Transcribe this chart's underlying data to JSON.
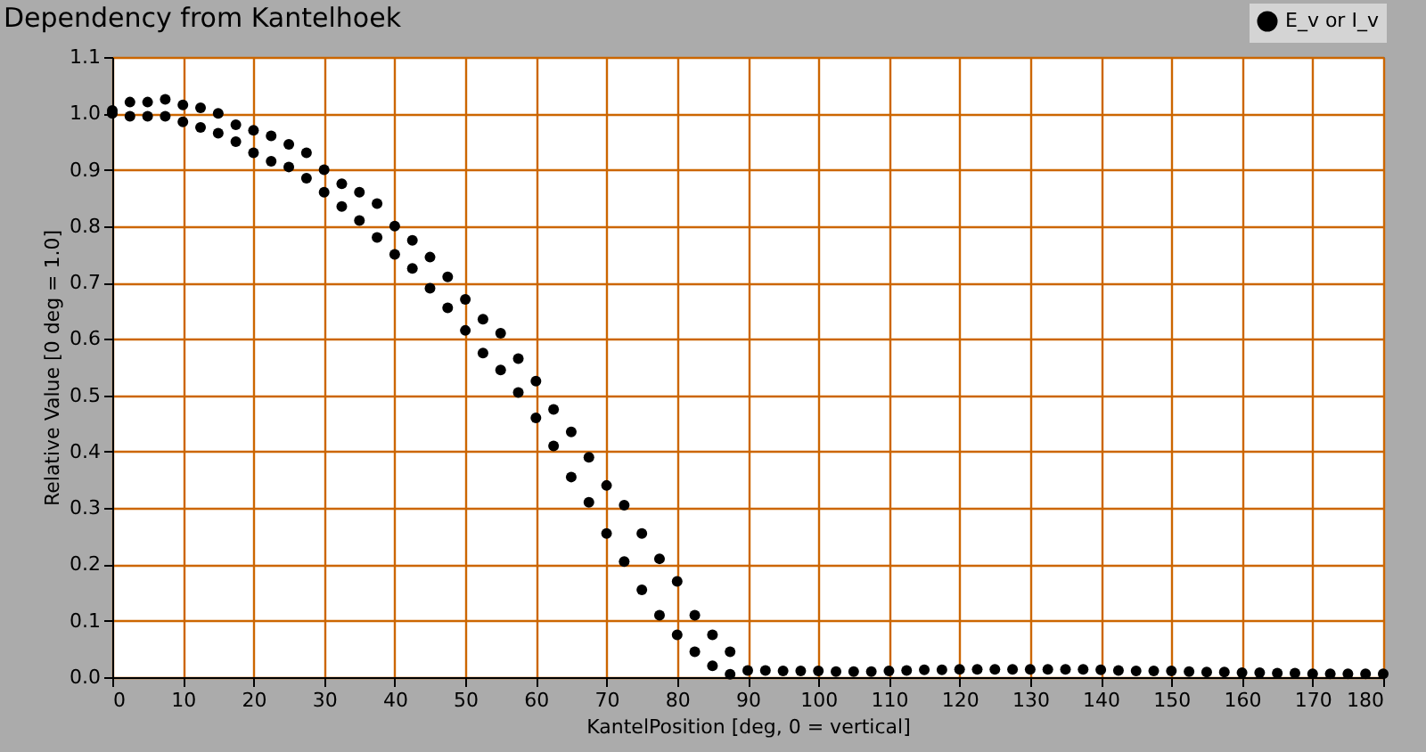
{
  "chart_data": {
    "type": "scatter",
    "title": "Dependency from Kantelhoek",
    "xlabel": "KantelPosition [deg, 0 = vertical]",
    "ylabel": "Relative Value [0 deg = 1.0]",
    "series": [
      {
        "name": "E_v or I_v",
        "color": "#000000",
        "x": [
          0,
          0,
          2.5,
          2.5,
          5,
          5,
          7.5,
          7.5,
          10,
          10,
          12.5,
          12.5,
          15,
          15,
          17.5,
          17.5,
          20,
          20,
          22.5,
          22.5,
          25,
          25,
          27.5,
          27.5,
          30,
          30,
          32.5,
          32.5,
          35,
          35,
          37.5,
          37.5,
          40,
          40,
          42.5,
          42.5,
          45,
          45,
          47.5,
          47.5,
          50,
          50,
          52.5,
          52.5,
          55,
          55,
          57.5,
          57.5,
          60,
          60,
          62.5,
          62.5,
          65,
          65,
          67.5,
          67.5,
          70,
          70,
          72.5,
          72.5,
          75,
          75,
          77.5,
          77.5,
          80,
          80,
          82.5,
          82.5,
          85,
          85,
          87.5,
          87.5,
          90,
          92.5,
          95,
          97.5,
          100,
          102.5,
          105,
          107.5,
          110,
          112.5,
          115,
          117.5,
          120,
          122.5,
          125,
          127.5,
          130,
          132.5,
          135,
          137.5,
          140,
          142.5,
          145,
          147.5,
          150,
          152.5,
          155,
          157.5,
          160,
          162.5,
          165,
          167.5,
          170,
          172.5,
          175,
          177.5,
          180
        ],
        "values": [
          1.0,
          1.005,
          0.995,
          1.02,
          0.995,
          1.02,
          0.995,
          1.025,
          0.985,
          1.015,
          0.975,
          1.01,
          0.965,
          1.0,
          0.95,
          0.98,
          0.93,
          0.97,
          0.915,
          0.96,
          0.905,
          0.945,
          0.885,
          0.93,
          0.86,
          0.9,
          0.835,
          0.875,
          0.81,
          0.86,
          0.78,
          0.84,
          0.75,
          0.8,
          0.725,
          0.775,
          0.69,
          0.745,
          0.655,
          0.71,
          0.615,
          0.67,
          0.575,
          0.635,
          0.545,
          0.61,
          0.505,
          0.565,
          0.46,
          0.525,
          0.41,
          0.475,
          0.355,
          0.435,
          0.31,
          0.39,
          0.255,
          0.34,
          0.205,
          0.305,
          0.155,
          0.255,
          0.11,
          0.21,
          0.075,
          0.17,
          0.045,
          0.11,
          0.02,
          0.075,
          0.005,
          0.045,
          0.012,
          0.012,
          0.011,
          0.011,
          0.011,
          0.01,
          0.01,
          0.01,
          0.011,
          0.012,
          0.013,
          0.013,
          0.014,
          0.014,
          0.014,
          0.014,
          0.014,
          0.014,
          0.014,
          0.014,
          0.013,
          0.012,
          0.011,
          0.011,
          0.011,
          0.01,
          0.009,
          0.009,
          0.008,
          0.008,
          0.007,
          0.007,
          0.006,
          0.006,
          0.006,
          0.006,
          0.006
        ]
      }
    ],
    "xlim": [
      0,
      180
    ],
    "xticks": [
      0,
      10,
      20,
      30,
      40,
      50,
      60,
      70,
      80,
      90,
      100,
      110,
      120,
      130,
      140,
      150,
      160,
      170,
      180
    ],
    "ylim": [
      0,
      1.1
    ],
    "yticks": [
      {
        "value": 0,
        "label": "0.0"
      },
      {
        "value": 0.1,
        "label": "0.1"
      },
      {
        "value": 0.2,
        "label": "0.2"
      },
      {
        "value": 0.3,
        "label": "0.3"
      },
      {
        "value": 0.4,
        "label": "0.4"
      },
      {
        "value": 0.5,
        "label": "0.5"
      },
      {
        "value": 0.6,
        "label": "0.6"
      },
      {
        "value": 0.7,
        "label": "0.7"
      },
      {
        "value": 0.8,
        "label": "0.8"
      },
      {
        "value": 0.9,
        "label": "0.9"
      },
      {
        "value": 1.0,
        "label": "1.0"
      },
      {
        "value": 1.1,
        "label": "1.1"
      }
    ],
    "grid": true,
    "legend": "top right",
    "marker": "circle"
  }
}
